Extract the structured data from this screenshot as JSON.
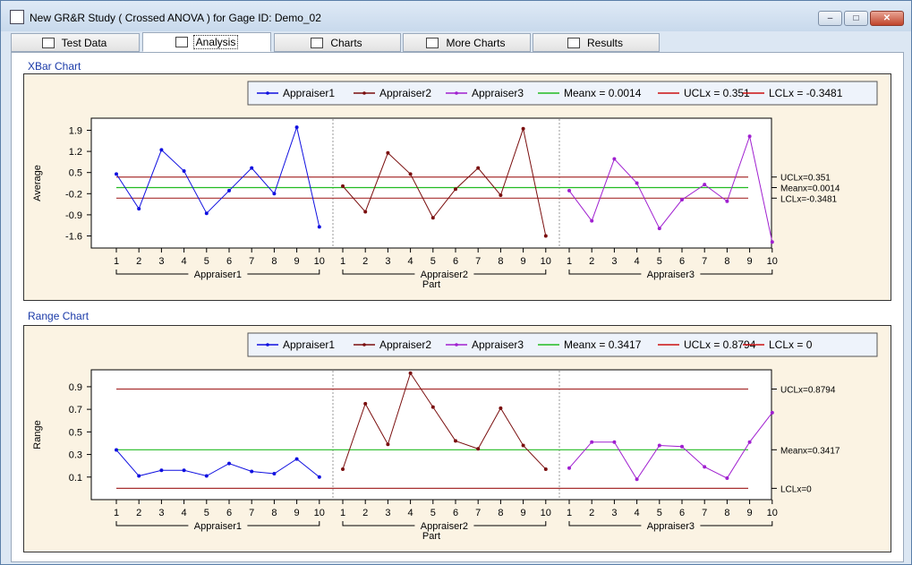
{
  "window": {
    "title": "New GR&R Study ( Crossed ANOVA ) for Gage ID: Demo_02",
    "min_glyph": "–",
    "max_glyph": "□",
    "close_glyph": "✕"
  },
  "tabs": [
    {
      "label": "Test Data",
      "icon": "table-icon"
    },
    {
      "label": "Analysis",
      "icon": "chart-icon",
      "active": true
    },
    {
      "label": "Charts",
      "icon": "chart-icon"
    },
    {
      "label": "More Charts",
      "icon": "chart-icon"
    },
    {
      "label": "Results",
      "icon": "grid-icon"
    }
  ],
  "xbar": {
    "section_title": "XBar Chart",
    "legend": {
      "a1": "Appraiser1",
      "a2": "Appraiser2",
      "a3": "Appraiser3",
      "mean": "Meanx = 0.0014",
      "ucl": "UCLx = 0.351",
      "lcl": "LCLx = -0.3481"
    },
    "ylabel": "Average",
    "xlabel": "Part",
    "right_labels": {
      "ucl": "UCLx=0.351",
      "mean": "Meanx=0.0014",
      "lcl": "LCLx=-0.3481"
    },
    "group_labels": [
      "Appraiser1",
      "Appraiser2",
      "Appraiser3"
    ]
  },
  "range": {
    "section_title": "Range Chart",
    "legend": {
      "a1": "Appraiser1",
      "a2": "Appraiser2",
      "a3": "Appraiser3",
      "mean": "Meanx = 0.3417",
      "ucl": "UCLx = 0.8794",
      "lcl": "LCLx = 0"
    },
    "ylabel": "Range",
    "xlabel": "Part",
    "right_labels": {
      "ucl": "UCLx=0.8794",
      "mean": "Meanx=0.3417",
      "lcl": "LCLx=0"
    },
    "group_labels": [
      "Appraiser1",
      "Appraiser2",
      "Appraiser3"
    ]
  },
  "colors": {
    "a1": "#1010e0",
    "a2": "#7a0e0e",
    "a3": "#a020d0",
    "mean": "#22bb22",
    "ucl": "#cc1111",
    "lcl": "#cc1111",
    "limitline": "#a83030"
  },
  "chart_data": [
    {
      "type": "line",
      "title": "XBar Chart",
      "ylabel": "Average",
      "xlabel": "Part",
      "categories": [
        "1",
        "2",
        "3",
        "4",
        "5",
        "6",
        "7",
        "8",
        "9",
        "10"
      ],
      "yticks": [
        1.9,
        1.2,
        0.5,
        -0.2,
        -0.9,
        -1.6
      ],
      "ylim": [
        -2.0,
        2.3
      ],
      "series": [
        {
          "name": "Appraiser1",
          "values": [
            0.45,
            -0.7,
            1.25,
            0.55,
            -0.85,
            -0.1,
            0.65,
            -0.2,
            2.0,
            -1.3
          ]
        },
        {
          "name": "Appraiser2",
          "values": [
            0.05,
            -0.8,
            1.15,
            0.45,
            -1.0,
            -0.05,
            0.65,
            -0.25,
            1.95,
            -1.6
          ]
        },
        {
          "name": "Appraiser3",
          "values": [
            -0.1,
            -1.1,
            0.95,
            0.15,
            -1.35,
            -0.4,
            0.1,
            -0.45,
            1.7,
            -1.8
          ]
        }
      ],
      "lines": {
        "mean": 0.0014,
        "ucl": 0.351,
        "lcl": -0.3481
      },
      "grid": false,
      "legend": "top"
    },
    {
      "type": "line",
      "title": "Range Chart",
      "ylabel": "Range",
      "xlabel": "Part",
      "categories": [
        "1",
        "2",
        "3",
        "4",
        "5",
        "6",
        "7",
        "8",
        "9",
        "10"
      ],
      "yticks": [
        0.9,
        0.7,
        0.5,
        0.3,
        0.1
      ],
      "ylim": [
        -0.1,
        1.05
      ],
      "series": [
        {
          "name": "Appraiser1",
          "values": [
            0.34,
            0.11,
            0.16,
            0.16,
            0.11,
            0.22,
            0.15,
            0.13,
            0.26,
            0.1
          ]
        },
        {
          "name": "Appraiser2",
          "values": [
            0.17,
            0.75,
            0.39,
            1.02,
            0.72,
            0.42,
            0.35,
            0.71,
            0.38,
            0.17
          ]
        },
        {
          "name": "Appraiser3",
          "values": [
            0.18,
            0.41,
            0.41,
            0.08,
            0.38,
            0.37,
            0.19,
            0.09,
            0.41,
            0.67
          ]
        }
      ],
      "lines": {
        "mean": 0.3417,
        "ucl": 0.8794,
        "lcl": 0
      },
      "grid": false,
      "legend": "top"
    }
  ]
}
